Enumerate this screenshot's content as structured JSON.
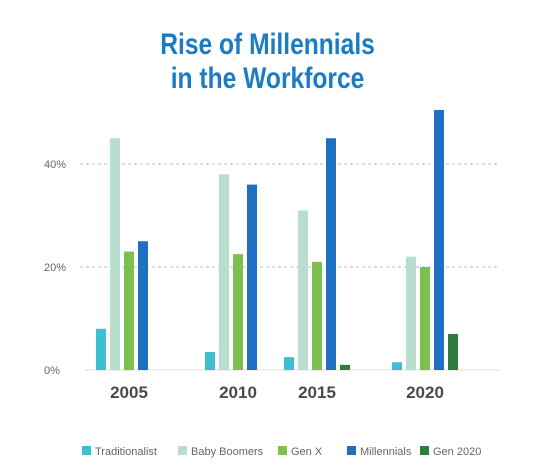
{
  "colors": {
    "title": "#1b7cc4",
    "background": "#ffffff",
    "grid": "#bbbbbb"
  },
  "chart_data": {
    "type": "bar",
    "title": "Rise of Millennials in the Workforce",
    "title_lines": [
      "Rise of Millennials",
      "in the Workforce"
    ],
    "xlabel": "",
    "ylabel": "",
    "categories": [
      "2005",
      "2010",
      "2015",
      "2020"
    ],
    "ylim": [
      0,
      50
    ],
    "yticks": [
      0,
      20,
      40
    ],
    "ytick_labels": [
      "0%",
      "20%",
      "40%"
    ],
    "grid": true,
    "legend_position": "bottom",
    "series": [
      {
        "name": "Traditionalist",
        "color": "#3cbfcf",
        "values": [
          8,
          3.5,
          2.5,
          1.5
        ]
      },
      {
        "name": "Baby Boomers",
        "color": "#b9ded0",
        "values": [
          45,
          38,
          31,
          22
        ]
      },
      {
        "name": "Gen X",
        "color": "#7cc14d",
        "values": [
          23,
          22.5,
          21,
          20
        ]
      },
      {
        "name": "Millennials",
        "color": "#1f6fc2",
        "values": [
          25,
          36,
          45,
          50.5
        ]
      },
      {
        "name": "Gen 2020",
        "color": "#2e7d3c",
        "values": [
          0,
          0,
          1,
          7
        ]
      }
    ]
  }
}
